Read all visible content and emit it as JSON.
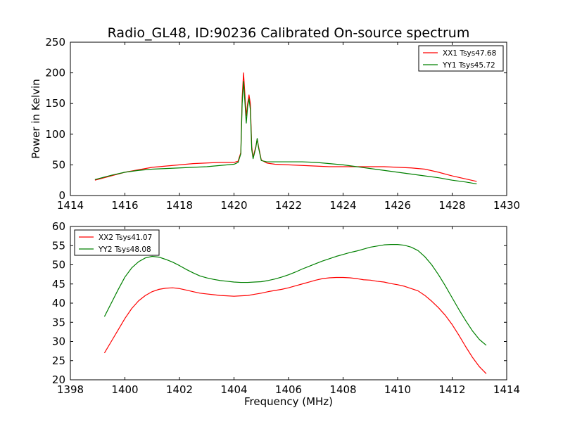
{
  "figure": {
    "title": "Radio_GL48, ID:90236 Calibrated On-source spectrum"
  },
  "chart_data": [
    {
      "type": "line",
      "title": "Radio_GL48, ID:90236 Calibrated On-source spectrum",
      "xlabel": "",
      "ylabel": "Power in Kelvin",
      "xlim": [
        1414,
        1430
      ],
      "ylim": [
        0,
        250
      ],
      "xticks": [
        1414,
        1416,
        1418,
        1420,
        1422,
        1424,
        1426,
        1428,
        1430
      ],
      "yticks": [
        0,
        50,
        100,
        150,
        200,
        250
      ],
      "grid": false,
      "legend_position": "top-right",
      "series": [
        {
          "name": "XX1 Tsys47.68",
          "color": "#ff0000",
          "x": [
            1414.9,
            1415.5,
            1416.0,
            1416.5,
            1417.0,
            1417.5,
            1418.0,
            1418.5,
            1419.0,
            1419.5,
            1420.0,
            1420.15,
            1420.25,
            1420.3,
            1420.35,
            1420.45,
            1420.5,
            1420.55,
            1420.6,
            1420.65,
            1420.7,
            1420.8,
            1420.85,
            1420.9,
            1421.0,
            1421.2,
            1421.5,
            1422.0,
            1422.5,
            1423.0,
            1423.5,
            1424.0,
            1424.5,
            1425.0,
            1425.5,
            1426.0,
            1426.5,
            1427.0,
            1427.5,
            1428.0,
            1428.5,
            1428.9
          ],
          "y": [
            25,
            32,
            38,
            42,
            46,
            48,
            50,
            52,
            53,
            54,
            54,
            56,
            70,
            160,
            200,
            130,
            150,
            164,
            150,
            80,
            62,
            80,
            92,
            80,
            58,
            53,
            51,
            50,
            49,
            48,
            47,
            47,
            47,
            47,
            47,
            46,
            45,
            43,
            38,
            32,
            27,
            23
          ]
        },
        {
          "name": "YY1 Tsys45.72",
          "color": "#008000",
          "x": [
            1414.9,
            1415.5,
            1416.0,
            1416.5,
            1417.0,
            1417.5,
            1418.0,
            1418.5,
            1419.0,
            1419.5,
            1420.0,
            1420.15,
            1420.25,
            1420.3,
            1420.35,
            1420.45,
            1420.5,
            1420.55,
            1420.6,
            1420.65,
            1420.7,
            1420.8,
            1420.85,
            1420.9,
            1421.0,
            1421.2,
            1421.5,
            1422.0,
            1422.5,
            1423.0,
            1423.5,
            1424.0,
            1424.5,
            1425.0,
            1425.5,
            1426.0,
            1426.5,
            1427.0,
            1427.5,
            1428.0,
            1428.5,
            1428.9
          ],
          "y": [
            26,
            33,
            38,
            41,
            43,
            44,
            45,
            46,
            47,
            49,
            51,
            54,
            68,
            150,
            186,
            118,
            145,
            158,
            140,
            75,
            60,
            78,
            93,
            78,
            57,
            55,
            55,
            55,
            55,
            54,
            52,
            50,
            47,
            44,
            41,
            38,
            35,
            32,
            29,
            25,
            22,
            19
          ]
        }
      ]
    },
    {
      "type": "line",
      "title": "",
      "xlabel": "Frequency (MHz)",
      "ylabel": "",
      "xlim": [
        1398,
        1414
      ],
      "ylim": [
        20,
        60
      ],
      "xticks": [
        1398,
        1400,
        1402,
        1404,
        1406,
        1408,
        1410,
        1412,
        1414
      ],
      "yticks": [
        20,
        25,
        30,
        35,
        40,
        45,
        50,
        55,
        60
      ],
      "grid": false,
      "legend_position": "top-left",
      "series": [
        {
          "name": "XX2 Tsys41.07",
          "color": "#ff0000",
          "x": [
            1399.25,
            1399.5,
            1399.75,
            1400.0,
            1400.25,
            1400.5,
            1400.75,
            1401.0,
            1401.25,
            1401.5,
            1401.75,
            1402.0,
            1402.25,
            1402.5,
            1402.75,
            1403.0,
            1403.25,
            1403.5,
            1403.75,
            1404.0,
            1404.25,
            1404.5,
            1404.75,
            1405.0,
            1405.25,
            1405.5,
            1405.75,
            1406.0,
            1406.25,
            1406.5,
            1406.75,
            1407.0,
            1407.25,
            1407.5,
            1407.75,
            1408.0,
            1408.25,
            1408.5,
            1408.75,
            1409.0,
            1409.25,
            1409.5,
            1409.75,
            1410.0,
            1410.25,
            1410.5,
            1410.75,
            1411.0,
            1411.25,
            1411.5,
            1411.75,
            1412.0,
            1412.25,
            1412.5,
            1412.75,
            1413.0,
            1413.25
          ],
          "y": [
            27.0,
            30.0,
            33.0,
            36.0,
            38.6,
            40.6,
            42.0,
            43.0,
            43.6,
            43.9,
            44.0,
            43.8,
            43.4,
            43.0,
            42.6,
            42.4,
            42.2,
            42.0,
            41.9,
            41.8,
            41.9,
            42.0,
            42.3,
            42.6,
            43.0,
            43.3,
            43.6,
            44.0,
            44.5,
            45.0,
            45.5,
            46.0,
            46.4,
            46.6,
            46.7,
            46.7,
            46.6,
            46.4,
            46.1,
            46.0,
            45.7,
            45.5,
            45.1,
            44.8,
            44.4,
            43.8,
            43.2,
            42.0,
            40.5,
            38.8,
            36.8,
            34.4,
            31.6,
            28.6,
            25.8,
            23.4,
            21.6
          ]
        },
        {
          "name": "YY2 Tsys48.08",
          "color": "#008000",
          "x": [
            1399.25,
            1399.5,
            1399.75,
            1400.0,
            1400.25,
            1400.5,
            1400.75,
            1401.0,
            1401.25,
            1401.5,
            1401.75,
            1402.0,
            1402.25,
            1402.5,
            1402.75,
            1403.0,
            1403.25,
            1403.5,
            1403.75,
            1404.0,
            1404.25,
            1404.5,
            1404.75,
            1405.0,
            1405.25,
            1405.5,
            1405.75,
            1406.0,
            1406.25,
            1406.5,
            1406.75,
            1407.0,
            1407.25,
            1407.5,
            1407.75,
            1408.0,
            1408.25,
            1408.5,
            1408.75,
            1409.0,
            1409.25,
            1409.5,
            1409.75,
            1410.0,
            1410.25,
            1410.5,
            1410.75,
            1411.0,
            1411.25,
            1411.5,
            1411.75,
            1412.0,
            1412.25,
            1412.5,
            1412.75,
            1413.0,
            1413.25
          ],
          "y": [
            36.5,
            40.0,
            43.5,
            46.8,
            49.2,
            50.8,
            51.8,
            52.2,
            52.0,
            51.4,
            50.7,
            49.8,
            48.8,
            47.9,
            47.1,
            46.6,
            46.2,
            45.9,
            45.7,
            45.5,
            45.4,
            45.4,
            45.5,
            45.6,
            45.9,
            46.3,
            46.8,
            47.4,
            48.1,
            48.9,
            49.6,
            50.3,
            51.0,
            51.6,
            52.2,
            52.7,
            53.2,
            53.6,
            54.1,
            54.6,
            54.9,
            55.2,
            55.3,
            55.3,
            55.1,
            54.6,
            53.7,
            52.1,
            50.0,
            47.4,
            44.5,
            41.4,
            38.3,
            35.4,
            32.7,
            30.5,
            29.0
          ]
        }
      ]
    }
  ]
}
